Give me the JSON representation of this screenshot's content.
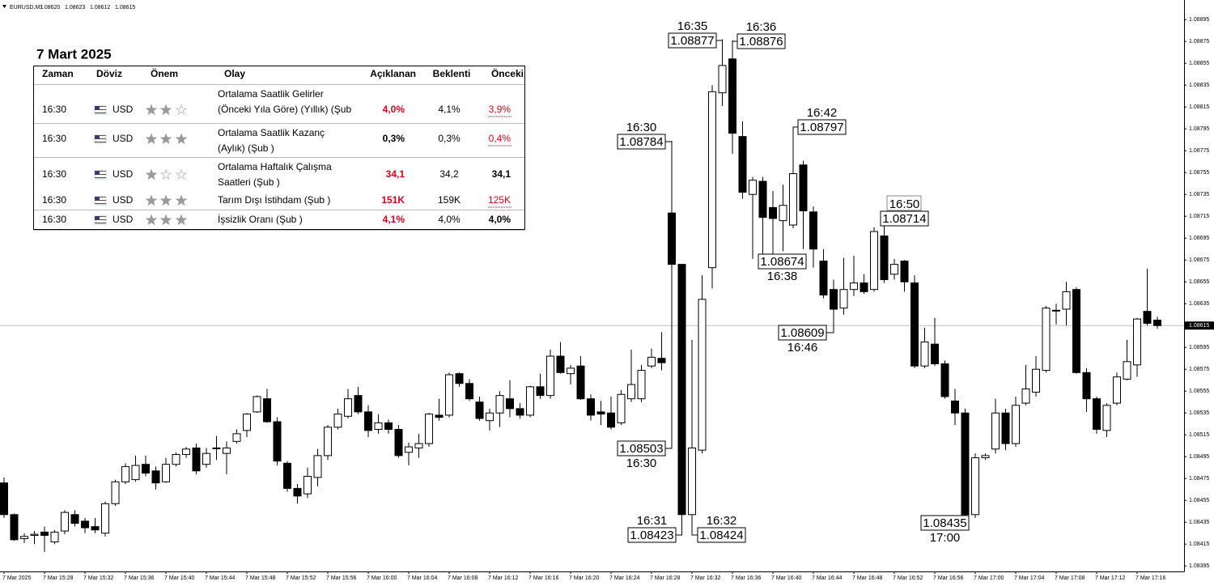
{
  "header": {
    "symbol": "EURUSD,M1",
    "prices": [
      "1.08620",
      "1.08623",
      "1.08612",
      "1.08615"
    ]
  },
  "chart_data": {
    "type": "candlestick",
    "categories": [
      "7 Mar 2025",
      null,
      null,
      null,
      "7 Mar 15:28",
      null,
      null,
      null,
      "7 Mar 15:32",
      null,
      null,
      null,
      "7 Mar 15:36",
      null,
      null,
      null,
      "7 Mar 15:40",
      null,
      null,
      null,
      "7 Mar 15:44",
      null,
      null,
      null,
      "7 Mar 15:48",
      null,
      null,
      null,
      "7 Mar 15:52",
      null,
      null,
      null,
      "7 Mar 15:56",
      null,
      null,
      null,
      "7 Mar 16:00",
      null,
      null,
      null,
      "7 Mar 16:04",
      null,
      null,
      null,
      "7 Mar 16:08",
      null,
      null,
      null,
      "7 Mar 16:12",
      null,
      null,
      null,
      "7 Mar 16:16",
      null,
      null,
      null,
      "7 Mar 16:20",
      null,
      null,
      null,
      "7 Mar 16:24",
      null,
      null,
      null,
      "7 Mar 16:28",
      null,
      null,
      null,
      "7 Mar 16:32",
      null,
      null,
      null,
      "7 Mar 16:36",
      null,
      null,
      null,
      "7 Mar 16:40",
      null,
      null,
      null,
      "7 Mar 16:44",
      null,
      null,
      null,
      "7 Mar 16:48",
      null,
      null,
      null,
      "7 Mar 16:52",
      null,
      null,
      null,
      "7 Mar 16:56",
      null,
      null,
      null,
      "7 Mar 17:00",
      null,
      null,
      null,
      "7 Mar 17:04",
      null,
      null,
      null,
      "7 Mar 17:08",
      null,
      null,
      null,
      "7 Mar 17:12",
      null,
      null,
      null,
      "7 Mar 17:16",
      null,
      null
    ],
    "open": [
      1.08471,
      1.08442,
      1.0842,
      1.08423,
      1.08426,
      1.08417,
      1.08427,
      1.08442,
      1.08436,
      1.08431,
      1.08425,
      1.08452,
      1.08472,
      1.08474,
      1.08488,
      1.08482,
      1.08472,
      1.08488,
      1.08497,
      1.08503,
      1.08488,
      1.08503,
      1.08498,
      1.08509,
      1.08519,
      1.08536,
      1.08548,
      1.08527,
      1.08489,
      1.08466,
      1.08461,
      1.08476,
      1.08496,
      1.08522,
      1.08532,
      1.08551,
      1.08536,
      1.0852,
      1.08526,
      1.0852,
      1.08499,
      1.08503,
      1.08507,
      1.08533,
      1.08533,
      1.08571,
      1.08562,
      1.08545,
      1.08528,
      1.08535,
      1.08548,
      1.08539,
      1.08533,
      1.08559,
      1.08551,
      1.08587,
      1.08571,
      1.08578,
      1.08548,
      1.08536,
      1.08535,
      1.08526,
      1.08548,
      1.08548,
      1.08578,
      1.08585,
      1.08718,
      1.08671,
      1.08442,
      1.08501,
      1.08668,
      1.08828,
      1.08859,
      1.08788,
      1.08735,
      1.08747,
      1.08723,
      1.08711,
      1.08707,
      1.08762,
      1.08719,
      1.08674,
      1.08648,
      1.08631,
      1.08648,
      1.08654,
      1.08648,
      1.08697,
      1.08662,
      1.08674,
      1.08654,
      1.08578,
      1.08598,
      1.0858,
      1.08546,
      1.08535,
      1.08442,
      1.08494,
      1.08502,
      1.08535,
      1.08507,
      1.08544,
      1.08554,
      1.08574,
      1.08629,
      1.0863,
      1.08648,
      1.08572,
      1.08548,
      1.08519,
      1.08544,
      1.08566,
      1.08579,
      1.08628,
      1.0862
    ],
    "high": [
      1.08476,
      1.08443,
      1.08425,
      1.08427,
      1.08431,
      1.08428,
      1.08446,
      1.08446,
      1.08439,
      1.08439,
      1.08454,
      1.08474,
      1.08489,
      1.08496,
      1.08496,
      1.08486,
      1.08494,
      1.08499,
      1.08504,
      1.08507,
      1.08503,
      1.08514,
      1.08509,
      1.0852,
      1.08535,
      1.08551,
      1.08557,
      1.08531,
      1.08491,
      1.0847,
      1.08485,
      1.08502,
      1.08524,
      1.08539,
      1.08557,
      1.08559,
      1.08542,
      1.08534,
      1.08529,
      1.08524,
      1.08508,
      1.08516,
      1.08535,
      1.08548,
      1.08572,
      1.08572,
      1.08566,
      1.0855,
      1.08539,
      1.08555,
      1.08565,
      1.08544,
      1.0856,
      1.08571,
      1.08593,
      1.086,
      1.08579,
      1.08587,
      1.08552,
      1.08546,
      1.0855,
      1.08556,
      1.08593,
      1.08579,
      1.08594,
      1.08609,
      1.08784,
      1.08671,
      1.08602,
      1.08661,
      1.08835,
      1.08877,
      1.08876,
      1.08802,
      1.08751,
      1.08751,
      1.08738,
      1.08744,
      1.08797,
      1.08766,
      1.08724,
      1.08685,
      1.08657,
      1.08677,
      1.08679,
      1.08662,
      1.08705,
      1.08714,
      1.08676,
      1.08675,
      1.08661,
      1.08613,
      1.08622,
      1.08583,
      1.08557,
      1.08539,
      1.08498,
      1.08498,
      1.08548,
      1.08539,
      1.0855,
      1.08579,
      1.08587,
      1.08633,
      1.08635,
      1.08655,
      1.0865,
      1.08576,
      1.0855,
      1.08544,
      1.08572,
      1.08602,
      1.08622,
      1.08667,
      1.08623
    ],
    "low": [
      1.08439,
      1.08418,
      1.08416,
      1.08415,
      1.08408,
      1.08415,
      1.08424,
      1.08431,
      1.08425,
      1.08425,
      1.08422,
      1.0845,
      1.0847,
      1.08472,
      1.08477,
      1.08465,
      1.08471,
      1.08486,
      1.08494,
      1.08479,
      1.08485,
      1.08492,
      1.08479,
      1.08507,
      1.08513,
      1.08535,
      1.08526,
      1.08487,
      1.08463,
      1.08452,
      1.08457,
      1.08468,
      1.08492,
      1.0852,
      1.0853,
      1.08534,
      1.08513,
      1.08516,
      1.08516,
      1.08494,
      1.08487,
      1.08494,
      1.08504,
      1.08528,
      1.08531,
      1.08559,
      1.08546,
      1.08528,
      1.08519,
      1.08522,
      1.08531,
      1.0853,
      1.08531,
      1.08548,
      1.08548,
      1.08571,
      1.08561,
      1.08547,
      1.08528,
      1.08524,
      1.0852,
      1.08524,
      1.08545,
      1.08545,
      1.08576,
      1.08574,
      1.08503,
      1.08423,
      1.08424,
      1.08498,
      1.08649,
      1.08816,
      1.08772,
      1.08731,
      1.08676,
      1.08676,
      1.08674,
      1.08683,
      1.08704,
      1.08685,
      1.08668,
      1.0864,
      1.08609,
      1.08625,
      1.08642,
      1.08644,
      1.08646,
      1.08654,
      1.08657,
      1.08646,
      1.08576,
      1.08576,
      1.08578,
      1.08548,
      1.08524,
      1.08435,
      1.08439,
      1.08492,
      1.08498,
      1.08501,
      1.08504,
      1.08542,
      1.0855,
      1.08572,
      1.08616,
      1.08615,
      1.08571,
      1.08536,
      1.08516,
      1.08513,
      1.08542,
      1.08565,
      1.08568,
      1.08615,
      1.08612
    ],
    "close": [
      1.08442,
      1.08419,
      1.08422,
      1.08424,
      1.08423,
      1.08426,
      1.08444,
      1.08434,
      1.0843,
      1.08428,
      1.08452,
      1.08472,
      1.08486,
      1.08487,
      1.0848,
      1.08471,
      1.08488,
      1.08497,
      1.08502,
      1.08482,
      1.08498,
      1.08503,
      1.08503,
      1.08516,
      1.08534,
      1.0855,
      1.08527,
      1.08491,
      1.08466,
      1.08459,
      1.08477,
      1.08496,
      1.08522,
      1.08534,
      1.08548,
      1.08536,
      1.08519,
      1.08526,
      1.0852,
      1.08496,
      1.08504,
      1.08507,
      1.08534,
      1.08531,
      1.0857,
      1.08562,
      1.08548,
      1.0853,
      1.08535,
      1.08551,
      1.08539,
      1.08533,
      1.08559,
      1.08551,
      1.08587,
      1.08572,
      1.08576,
      1.08548,
      1.08533,
      1.08534,
      1.08522,
      1.08552,
      1.08561,
      1.08574,
      1.08586,
      1.08581,
      1.08671,
      1.08442,
      1.08503,
      1.08639,
      1.08829,
      1.08853,
      1.08791,
      1.08737,
      1.08748,
      1.08714,
      1.08713,
      1.08725,
      1.08754,
      1.0872,
      1.08685,
      1.08643,
      1.0863,
      1.08648,
      1.08654,
      1.08646,
      1.08701,
      1.08657,
      1.08671,
      1.08655,
      1.08578,
      1.086,
      1.0858,
      1.0855,
      1.08535,
      1.08442,
      1.08494,
      1.08496,
      1.08535,
      1.08507,
      1.08542,
      1.08557,
      1.08575,
      1.08631,
      1.08629,
      1.08646,
      1.08572,
      1.08548,
      1.0852,
      1.08542,
      1.08568,
      1.08582,
      1.08621,
      1.08617,
      1.08615
    ],
    "up_color": "#ffffff",
    "down_color": "#000000",
    "ylim": [
      1.0839,
      1.08907
    ],
    "yticks": [
      1.08895,
      1.08875,
      1.08855,
      1.08835,
      1.08815,
      1.08795,
      1.08775,
      1.08755,
      1.08735,
      1.08715,
      1.08695,
      1.08675,
      1.08655,
      1.08635,
      1.08615,
      1.08595,
      1.08575,
      1.08555,
      1.08535,
      1.08515,
      1.08495,
      1.08475,
      1.08455,
      1.08435,
      1.08415,
      1.08395
    ],
    "grid": false,
    "annotations": [
      {
        "time": "16:35",
        "price": "1.08877"
      },
      {
        "time": "16:36",
        "price": "1.08876"
      },
      {
        "time": "16:30",
        "price": "1.08784"
      },
      {
        "time": "16:42",
        "price": "1.08797"
      },
      {
        "time": "16:50",
        "price": "1.08714"
      },
      {
        "time": "16:38",
        "price": "1.08674"
      },
      {
        "time": "16:46",
        "price": "1.08609"
      },
      {
        "time": "16:30",
        "price": "1.08503"
      },
      {
        "time": "16:31",
        "price": "1.08423"
      },
      {
        "time": "16:32",
        "price": "1.08424"
      },
      {
        "time": "17:00",
        "price": "1.08435"
      }
    ]
  },
  "calendar": {
    "title": "7 Mart 2025",
    "columns": [
      "Zaman",
      "Döviz",
      "Önem",
      "Olay",
      "Açıklanan",
      "Beklenti",
      "Önceki"
    ],
    "rows": [
      {
        "time": "16:30",
        "currency": "USD",
        "importance": 2,
        "event": [
          "Ortalama Saatlik Gelirler",
          "(Önceki Yıla Göre) (Yıllık) (Şub"
        ],
        "actual": "4,0%",
        "forecast": "4,1%",
        "previous": "3,9%",
        "actual_color": "#e0001a",
        "previous_color": "#e0001a"
      },
      {
        "time": "16:30",
        "currency": "USD",
        "importance": 3,
        "event": [
          "Ortalama Saatlik Kazanç",
          "(Aylık) (Şub )"
        ],
        "actual": "0,3%",
        "forecast": "0,3%",
        "previous": "0,4%",
        "actual_color": "#000000",
        "previous_color": "#e0001a"
      },
      {
        "time": "16:30",
        "currency": "USD",
        "importance": 1,
        "event": [
          "Ortalama Haftalık Çalışma",
          "Saatleri (Şub )"
        ],
        "actual": "34,1",
        "forecast": "34,2",
        "previous": "34,1",
        "actual_color": "#e0001a",
        "previous_color": "#000000"
      },
      {
        "time": "16:30",
        "currency": "USD",
        "importance": 3,
        "event": [
          "Tarım Dışı İstihdam (Şub )"
        ],
        "actual": "151K",
        "forecast": "159K",
        "previous": "125K",
        "actual_color": "#e0001a",
        "previous_color": "#e0001a"
      },
      {
        "time": "16:30",
        "currency": "USD",
        "importance": 3,
        "event": [
          "İşsizlik Oranı (Şub )"
        ],
        "actual": "4,1%",
        "forecast": "4,0%",
        "previous": "4,0%",
        "actual_color": "#e0001a",
        "previous_color": "#000000"
      }
    ]
  }
}
